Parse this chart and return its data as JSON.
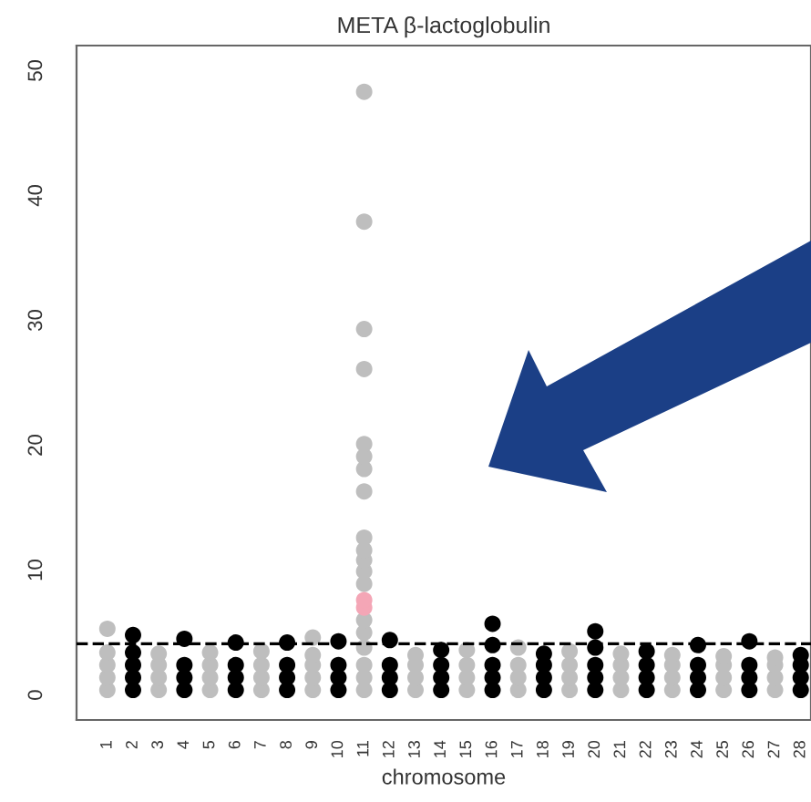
{
  "chart_data": {
    "type": "scatter",
    "title": "META β-lactoglobulin",
    "xlabel": "chromosome",
    "categories": [
      "1",
      "2",
      "3",
      "4",
      "5",
      "6",
      "7",
      "8",
      "9",
      "10",
      "11",
      "12",
      "13",
      "14",
      "15",
      "16",
      "17",
      "18",
      "19",
      "20",
      "21",
      "22",
      "23",
      "24",
      "25",
      "26",
      "27",
      "28"
    ],
    "ylim": [
      -2,
      52
    ],
    "yticks": [
      0,
      10,
      20,
      30,
      40,
      50
    ],
    "grid": false,
    "marker": "circle",
    "ref_lines": [
      {
        "axis": "y",
        "value": 4.1,
        "color": "#000000",
        "line_style": "dashed"
      }
    ],
    "series": [
      {
        "color": "#bebebe",
        "x": [
          "1",
          "1",
          "1",
          "1",
          "1",
          "3",
          "3",
          "3",
          "3",
          "5",
          "5",
          "5",
          "5",
          "7",
          "7",
          "7",
          "7",
          "9",
          "9",
          "9",
          "9",
          "9",
          "11",
          "11",
          "11",
          "11",
          "13",
          "13",
          "13",
          "13",
          "15",
          "15",
          "15",
          "15",
          "17",
          "17",
          "17",
          "17",
          "19",
          "19",
          "19",
          "19",
          "21",
          "21",
          "21",
          "21",
          "23",
          "23",
          "23",
          "23",
          "25",
          "25",
          "25",
          "25",
          "27",
          "27",
          "27",
          "27",
          "11",
          "11",
          "11",
          "11",
          "11",
          "11",
          "11",
          "11",
          "11",
          "11",
          "11",
          "11",
          "11",
          "11",
          "11"
        ],
        "values": [
          0.4,
          1.4,
          2.4,
          3.4,
          5.3,
          0.4,
          1.4,
          2.4,
          3.3,
          0.4,
          1.4,
          2.4,
          3.4,
          0.4,
          1.4,
          2.4,
          3.5,
          0.4,
          1.4,
          2.4,
          3.2,
          4.6,
          0.4,
          1.4,
          2.4,
          3.8,
          0.4,
          1.4,
          2.4,
          3.2,
          0.4,
          1.4,
          2.4,
          3.6,
          0.4,
          1.4,
          2.4,
          3.8,
          0.4,
          1.4,
          2.4,
          3.5,
          0.4,
          1.4,
          2.4,
          3.3,
          0.4,
          1.4,
          2.4,
          3.2,
          0.4,
          1.4,
          2.4,
          3.1,
          0.4,
          1.4,
          2.4,
          3.0,
          5.0,
          6.0,
          8.9,
          9.9,
          10.8,
          11.6,
          12.6,
          16.3,
          18.1,
          19.1,
          20.1,
          26.1,
          29.3,
          37.9,
          48.3
        ]
      },
      {
        "color": "#000000",
        "x": [
          "2",
          "2",
          "2",
          "2",
          "2",
          "4",
          "4",
          "4",
          "4",
          "6",
          "6",
          "6",
          "6",
          "8",
          "8",
          "8",
          "8",
          "10",
          "10",
          "10",
          "10",
          "12",
          "12",
          "12",
          "12",
          "14",
          "14",
          "14",
          "14",
          "16",
          "16",
          "16",
          "16",
          "16",
          "18",
          "18",
          "18",
          "18",
          "20",
          "20",
          "20",
          "20",
          "20",
          "22",
          "22",
          "22",
          "22",
          "24",
          "24",
          "24",
          "24",
          "26",
          "26",
          "26",
          "26",
          "28",
          "28",
          "28",
          "28"
        ],
        "values": [
          0.4,
          1.4,
          2.4,
          3.4,
          4.8,
          0.4,
          1.4,
          2.4,
          4.5,
          0.4,
          1.4,
          2.4,
          4.2,
          0.4,
          1.4,
          2.4,
          4.2,
          0.4,
          1.4,
          2.4,
          4.3,
          0.4,
          1.4,
          2.4,
          4.4,
          0.4,
          1.4,
          2.4,
          3.6,
          0.4,
          1.4,
          2.4,
          4.0,
          5.7,
          0.4,
          1.4,
          2.4,
          3.3,
          0.4,
          1.4,
          2.4,
          3.8,
          5.1,
          0.4,
          1.4,
          2.4,
          3.5,
          0.4,
          1.4,
          2.4,
          4.0,
          0.4,
          1.4,
          2.4,
          4.3,
          0.4,
          1.4,
          2.4,
          3.2
        ]
      },
      {
        "color": "#f4a6b6",
        "x": [
          "11",
          "11"
        ],
        "values": [
          7.0,
          7.6
        ]
      }
    ]
  }
}
